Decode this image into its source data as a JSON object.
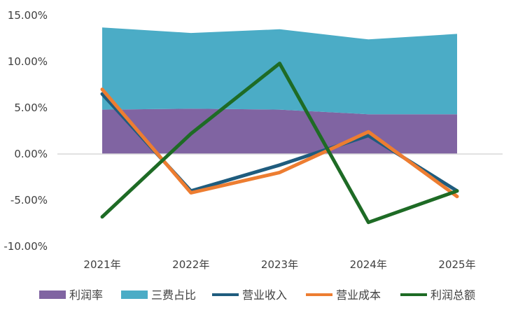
{
  "chart_data": {
    "type": "area",
    "categories": [
      "2021年",
      "2022年",
      "2023年",
      "2024年",
      "2025年"
    ],
    "ylim": [
      -0.1,
      0.15
    ],
    "yticks": [
      "15.00%",
      "10.00%",
      "5.00%",
      "0.00%",
      "-5.00%",
      "-10.00%"
    ],
    "yticks_values": [
      0.15,
      0.1,
      0.05,
      0.0,
      -0.05,
      -0.1
    ],
    "series": [
      {
        "name": "利润率",
        "kind": "stacked-area",
        "color": "#8064a2",
        "values": [
          0.048,
          0.049,
          0.048,
          0.043,
          0.043
        ]
      },
      {
        "name": "三费占比",
        "kind": "stacked-area",
        "color": "#4bacc6",
        "values": [
          0.089,
          0.082,
          0.087,
          0.081,
          0.087
        ]
      },
      {
        "name": "营业收入",
        "kind": "line",
        "color": "#1f5c7e",
        "values": [
          0.065,
          -0.04,
          -0.012,
          0.02,
          -0.04
        ]
      },
      {
        "name": "营业成本",
        "kind": "line",
        "color": "#ed7d31",
        "values": [
          0.07,
          -0.042,
          -0.02,
          0.024,
          -0.046
        ]
      },
      {
        "name": "利润总额",
        "kind": "line",
        "color": "#1e6b25",
        "values": [
          -0.068,
          0.022,
          0.098,
          -0.074,
          -0.04
        ]
      }
    ],
    "legend": "bottom",
    "grid": false
  }
}
